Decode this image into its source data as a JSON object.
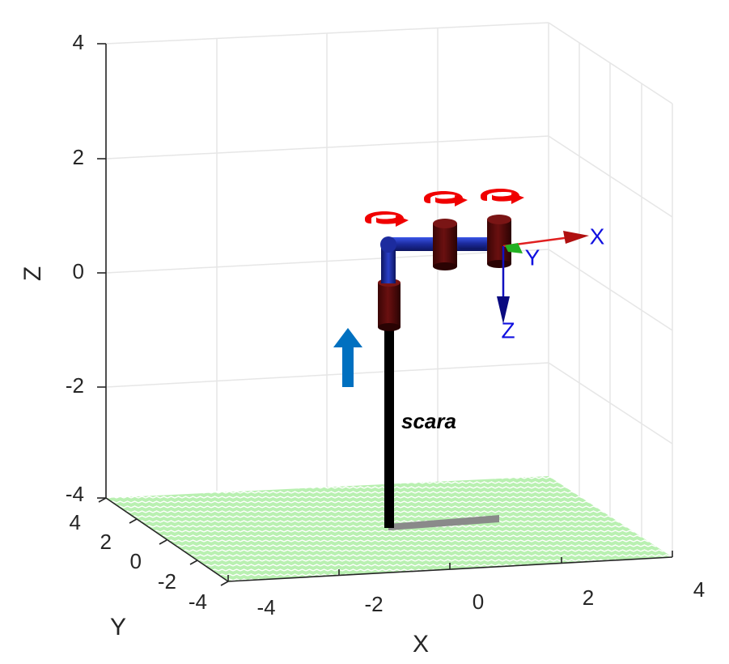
{
  "axes": {
    "x_label": "X",
    "y_label": "Y",
    "z_label": "Z",
    "x_ticks": [
      "-4",
      "-2",
      "0",
      "2",
      "4"
    ],
    "y_ticks": [
      "4",
      "2",
      "0",
      "-2",
      "-4"
    ],
    "z_ticks": [
      "4",
      "2",
      "0",
      "-2",
      "-4"
    ],
    "xlim": [
      -4,
      4
    ],
    "ylim": [
      -4,
      4
    ],
    "zlim": [
      -4,
      4
    ],
    "grid": true
  },
  "robot": {
    "name": "scara",
    "tool_frame": {
      "x_label": "X",
      "y_label": "Y",
      "z_label": "Z"
    }
  },
  "colors": {
    "floor": "#b9f0b1",
    "floor_pattern": "#ffffff",
    "link": "#1c2b9e",
    "joint": "#5a0a0a",
    "base_column": "#000000",
    "base_plate": "#8a8a8a",
    "rotation_arrow": "#f00000",
    "prismatic_arrow": "#0070c0",
    "frame_x": "#e02020",
    "frame_y": "#22b022",
    "frame_z": "#1010c0",
    "grid": "#e6e6e6",
    "axis": "#262626"
  }
}
